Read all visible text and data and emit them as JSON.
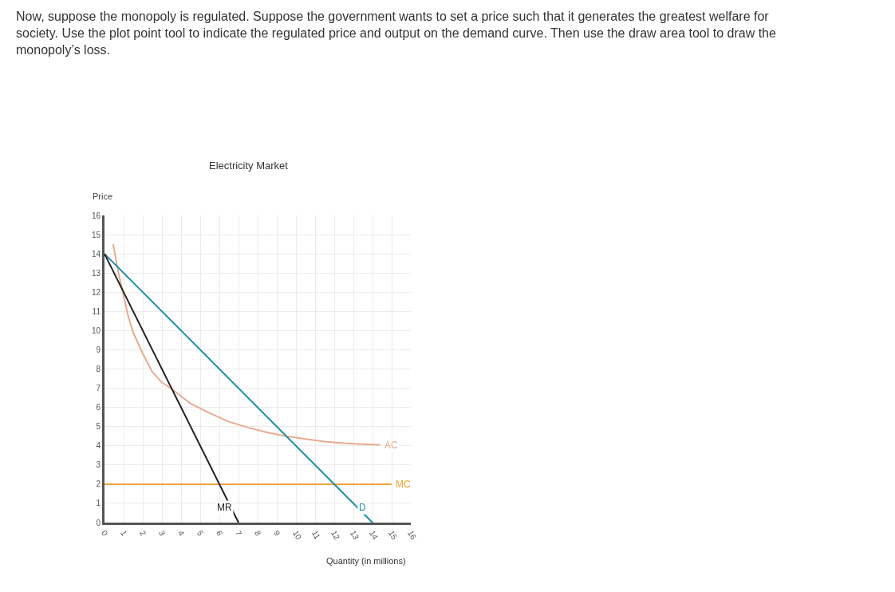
{
  "chart_data": {
    "type": "line",
    "title": "Electricity Market",
    "xlabel": "Quantity (in millions)",
    "ylabel": "Price",
    "annotations": [
      "Now, suppose the monopoly is regulated. Suppose the government wants to set a price such that it generates the greatest welfare for society. Use the plot point tool to indicate the regulated price and output on the demand curve. Then use the draw area tool to draw the monopoly’s loss."
    ],
    "xlim": [
      0,
      16
    ],
    "ylim": [
      0,
      16
    ],
    "xticks": [
      0,
      1,
      2,
      3,
      4,
      5,
      6,
      7,
      8,
      9,
      10,
      11,
      12,
      13,
      14,
      15,
      16
    ],
    "yticks": [
      0,
      1,
      2,
      3,
      4,
      5,
      6,
      7,
      8,
      9,
      10,
      11,
      12,
      13,
      14,
      15,
      16
    ],
    "grid": true,
    "line_style": "solid",
    "series": [
      {
        "name": "AC",
        "color": "#e8ab90",
        "x": [
          0.45,
          0.6,
          0.75,
          1.0,
          1.25,
          1.5,
          2.0,
          2.5,
          3.0,
          3.6,
          4.5,
          5.5,
          6.5,
          7.5,
          8.5,
          9.5,
          10.5,
          11.5,
          12.5,
          13.5,
          14.4
        ],
        "values": [
          14.5,
          13.7,
          12.9,
          11.8,
          10.7,
          9.9,
          8.8,
          7.85,
          7.3,
          6.9,
          6.2,
          5.7,
          5.25,
          4.95,
          4.7,
          4.5,
          4.35,
          4.22,
          4.13,
          4.08,
          4.05
        ]
      },
      {
        "name": "MC",
        "color": "#f0a235",
        "x": [
          0,
          15
        ],
        "values": [
          2,
          2
        ]
      },
      {
        "name": "D",
        "color": "#1a8ea6",
        "x": [
          0,
          14
        ],
        "values": [
          14,
          0
        ]
      },
      {
        "name": "MR",
        "color": "#222222",
        "x": [
          0,
          7
        ],
        "values": [
          14,
          0
        ]
      }
    ]
  }
}
